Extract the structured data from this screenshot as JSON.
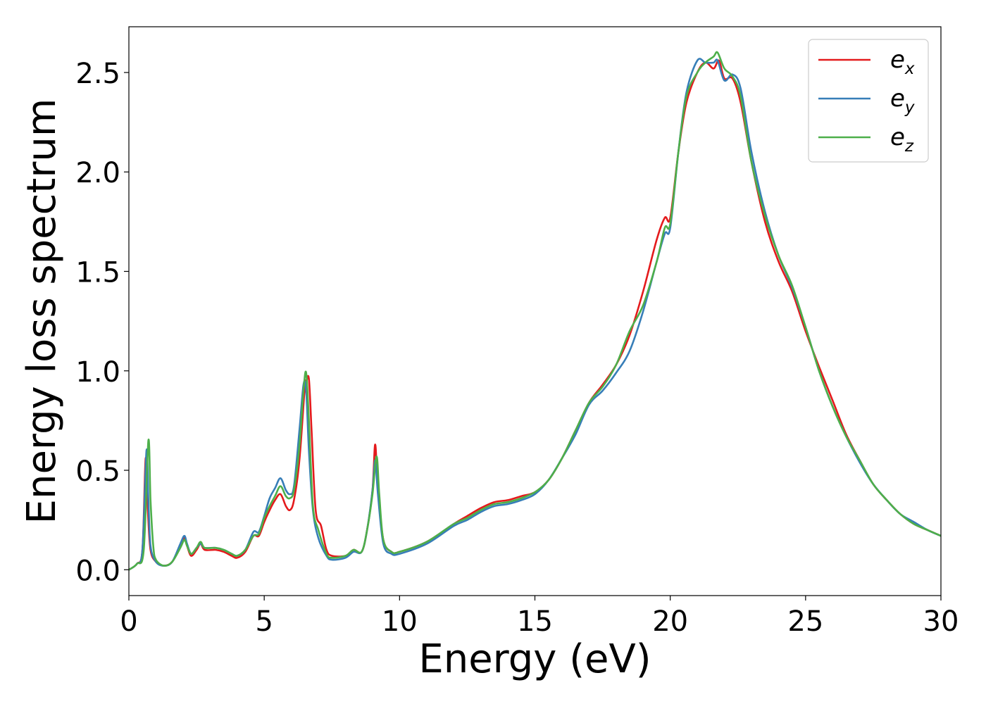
{
  "chart_data": {
    "type": "line",
    "title": "",
    "xlabel": "Energy (eV)",
    "ylabel": "Energy loss spectrum",
    "xlim": [
      0,
      30
    ],
    "ylim": [
      -0.13,
      2.73
    ],
    "xticks": [
      0,
      5,
      10,
      15,
      20,
      25,
      30
    ],
    "xtick_labels": [
      "0",
      "5",
      "10",
      "15",
      "20",
      "25",
      "30"
    ],
    "yticks": [
      0.0,
      0.5,
      1.0,
      1.5,
      2.0,
      2.5
    ],
    "ytick_labels": [
      "0.0",
      "0.5",
      "1.0",
      "1.5",
      "2.0",
      "2.5"
    ],
    "grid": false,
    "legend_position": "top-right",
    "series": [
      {
        "name": "e_x",
        "label_main": "e",
        "label_sub": "x",
        "color": "#e41a1c",
        "points": [
          [
            0,
            0.0
          ],
          [
            0.3,
            0.03
          ],
          [
            0.5,
            0.1
          ],
          [
            0.62,
            0.56
          ],
          [
            0.7,
            0.3
          ],
          [
            0.8,
            0.1
          ],
          [
            1.0,
            0.04
          ],
          [
            1.3,
            0.02
          ],
          [
            1.6,
            0.04
          ],
          [
            1.9,
            0.12
          ],
          [
            2.05,
            0.16
          ],
          [
            2.15,
            0.12
          ],
          [
            2.3,
            0.07
          ],
          [
            2.5,
            0.1
          ],
          [
            2.65,
            0.13
          ],
          [
            2.8,
            0.1
          ],
          [
            3.2,
            0.1
          ],
          [
            3.5,
            0.09
          ],
          [
            3.8,
            0.07
          ],
          [
            4.0,
            0.06
          ],
          [
            4.3,
            0.09
          ],
          [
            4.6,
            0.17
          ],
          [
            4.8,
            0.17
          ],
          [
            5.0,
            0.24
          ],
          [
            5.2,
            0.3
          ],
          [
            5.4,
            0.35
          ],
          [
            5.6,
            0.38
          ],
          [
            5.8,
            0.32
          ],
          [
            5.95,
            0.3
          ],
          [
            6.1,
            0.35
          ],
          [
            6.3,
            0.55
          ],
          [
            6.5,
            0.92
          ],
          [
            6.55,
            0.94
          ],
          [
            6.65,
            0.96
          ],
          [
            6.75,
            0.7
          ],
          [
            6.9,
            0.3
          ],
          [
            7.1,
            0.22
          ],
          [
            7.3,
            0.1
          ],
          [
            7.5,
            0.07
          ],
          [
            8.0,
            0.07
          ],
          [
            8.3,
            0.1
          ],
          [
            8.6,
            0.09
          ],
          [
            8.8,
            0.2
          ],
          [
            9.0,
            0.4
          ],
          [
            9.1,
            0.63
          ],
          [
            9.2,
            0.4
          ],
          [
            9.4,
            0.15
          ],
          [
            9.7,
            0.09
          ],
          [
            10.0,
            0.09
          ],
          [
            11.0,
            0.14
          ],
          [
            12.0,
            0.23
          ],
          [
            12.5,
            0.27
          ],
          [
            13.0,
            0.31
          ],
          [
            13.5,
            0.34
          ],
          [
            14.0,
            0.35
          ],
          [
            14.5,
            0.37
          ],
          [
            15.0,
            0.39
          ],
          [
            15.5,
            0.45
          ],
          [
            16.0,
            0.56
          ],
          [
            16.5,
            0.7
          ],
          [
            17.0,
            0.84
          ],
          [
            17.5,
            0.93
          ],
          [
            18.0,
            1.03
          ],
          [
            18.5,
            1.18
          ],
          [
            19.0,
            1.4
          ],
          [
            19.5,
            1.66
          ],
          [
            19.8,
            1.77
          ],
          [
            20.0,
            1.77
          ],
          [
            20.3,
            2.1
          ],
          [
            20.6,
            2.35
          ],
          [
            21.0,
            2.5
          ],
          [
            21.3,
            2.55
          ],
          [
            21.6,
            2.52
          ],
          [
            21.8,
            2.56
          ],
          [
            22.0,
            2.47
          ],
          [
            22.3,
            2.47
          ],
          [
            22.6,
            2.35
          ],
          [
            23.0,
            2.05
          ],
          [
            23.5,
            1.75
          ],
          [
            24.0,
            1.55
          ],
          [
            24.5,
            1.4
          ],
          [
            25.0,
            1.2
          ],
          [
            25.5,
            1.02
          ],
          [
            26.0,
            0.85
          ],
          [
            26.5,
            0.68
          ],
          [
            27.0,
            0.55
          ],
          [
            27.5,
            0.43
          ],
          [
            28.0,
            0.35
          ],
          [
            28.5,
            0.28
          ],
          [
            29.0,
            0.23
          ],
          [
            29.5,
            0.2
          ],
          [
            30.0,
            0.17
          ]
        ]
      },
      {
        "name": "e_y",
        "label_main": "e",
        "label_sub": "y",
        "color": "#377eb8",
        "points": [
          [
            0,
            0.0
          ],
          [
            0.3,
            0.03
          ],
          [
            0.5,
            0.1
          ],
          [
            0.65,
            0.6
          ],
          [
            0.72,
            0.35
          ],
          [
            0.8,
            0.12
          ],
          [
            1.0,
            0.04
          ],
          [
            1.3,
            0.02
          ],
          [
            1.6,
            0.04
          ],
          [
            1.9,
            0.13
          ],
          [
            2.05,
            0.17
          ],
          [
            2.15,
            0.13
          ],
          [
            2.3,
            0.08
          ],
          [
            2.5,
            0.11
          ],
          [
            2.65,
            0.13
          ],
          [
            2.8,
            0.11
          ],
          [
            3.2,
            0.11
          ],
          [
            3.5,
            0.1
          ],
          [
            3.8,
            0.08
          ],
          [
            4.0,
            0.07
          ],
          [
            4.3,
            0.1
          ],
          [
            4.6,
            0.19
          ],
          [
            4.8,
            0.19
          ],
          [
            5.0,
            0.27
          ],
          [
            5.2,
            0.36
          ],
          [
            5.4,
            0.41
          ],
          [
            5.6,
            0.46
          ],
          [
            5.8,
            0.4
          ],
          [
            5.95,
            0.38
          ],
          [
            6.1,
            0.42
          ],
          [
            6.3,
            0.7
          ],
          [
            6.45,
            0.93
          ],
          [
            6.55,
            0.9
          ],
          [
            6.65,
            0.6
          ],
          [
            6.8,
            0.3
          ],
          [
            7.0,
            0.16
          ],
          [
            7.3,
            0.07
          ],
          [
            7.5,
            0.05
          ],
          [
            8.0,
            0.06
          ],
          [
            8.3,
            0.09
          ],
          [
            8.6,
            0.09
          ],
          [
            8.8,
            0.2
          ],
          [
            9.0,
            0.4
          ],
          [
            9.1,
            0.55
          ],
          [
            9.2,
            0.38
          ],
          [
            9.4,
            0.13
          ],
          [
            9.7,
            0.08
          ],
          [
            10.0,
            0.08
          ],
          [
            11.0,
            0.13
          ],
          [
            12.0,
            0.22
          ],
          [
            12.5,
            0.25
          ],
          [
            13.0,
            0.29
          ],
          [
            13.5,
            0.32
          ],
          [
            14.0,
            0.33
          ],
          [
            14.5,
            0.35
          ],
          [
            15.0,
            0.38
          ],
          [
            15.5,
            0.45
          ],
          [
            16.0,
            0.56
          ],
          [
            16.5,
            0.68
          ],
          [
            17.0,
            0.83
          ],
          [
            17.5,
            0.9
          ],
          [
            18.0,
            0.99
          ],
          [
            18.5,
            1.1
          ],
          [
            19.0,
            1.3
          ],
          [
            19.5,
            1.55
          ],
          [
            19.8,
            1.69
          ],
          [
            20.0,
            1.72
          ],
          [
            20.3,
            2.1
          ],
          [
            20.6,
            2.4
          ],
          [
            21.0,
            2.56
          ],
          [
            21.3,
            2.55
          ],
          [
            21.6,
            2.55
          ],
          [
            21.75,
            2.56
          ],
          [
            22.0,
            2.46
          ],
          [
            22.3,
            2.49
          ],
          [
            22.6,
            2.42
          ],
          [
            23.0,
            2.1
          ],
          [
            23.5,
            1.8
          ],
          [
            24.0,
            1.58
          ],
          [
            24.5,
            1.42
          ],
          [
            25.0,
            1.22
          ],
          [
            25.5,
            1.0
          ],
          [
            26.0,
            0.82
          ],
          [
            26.5,
            0.67
          ],
          [
            27.0,
            0.54
          ],
          [
            27.5,
            0.43
          ],
          [
            28.0,
            0.35
          ],
          [
            28.5,
            0.28
          ],
          [
            29.0,
            0.24
          ],
          [
            29.5,
            0.2
          ],
          [
            30.0,
            0.17
          ]
        ]
      },
      {
        "name": "e_z",
        "label_main": "e",
        "label_sub": "z",
        "color": "#4daf4a",
        "points": [
          [
            0,
            0.0
          ],
          [
            0.3,
            0.03
          ],
          [
            0.55,
            0.1
          ],
          [
            0.72,
            0.65
          ],
          [
            0.8,
            0.35
          ],
          [
            0.9,
            0.12
          ],
          [
            1.0,
            0.05
          ],
          [
            1.3,
            0.02
          ],
          [
            1.6,
            0.04
          ],
          [
            1.9,
            0.11
          ],
          [
            2.05,
            0.15
          ],
          [
            2.15,
            0.12
          ],
          [
            2.3,
            0.08
          ],
          [
            2.5,
            0.11
          ],
          [
            2.65,
            0.14
          ],
          [
            2.8,
            0.11
          ],
          [
            3.2,
            0.11
          ],
          [
            3.5,
            0.1
          ],
          [
            3.8,
            0.08
          ],
          [
            4.0,
            0.07
          ],
          [
            4.3,
            0.1
          ],
          [
            4.6,
            0.17
          ],
          [
            4.8,
            0.18
          ],
          [
            5.0,
            0.26
          ],
          [
            5.2,
            0.32
          ],
          [
            5.4,
            0.37
          ],
          [
            5.6,
            0.42
          ],
          [
            5.8,
            0.37
          ],
          [
            5.95,
            0.36
          ],
          [
            6.1,
            0.4
          ],
          [
            6.3,
            0.62
          ],
          [
            6.45,
            0.9
          ],
          [
            6.55,
            0.99
          ],
          [
            6.65,
            0.75
          ],
          [
            6.8,
            0.32
          ],
          [
            7.0,
            0.2
          ],
          [
            7.3,
            0.08
          ],
          [
            7.5,
            0.06
          ],
          [
            8.0,
            0.07
          ],
          [
            8.3,
            0.1
          ],
          [
            8.6,
            0.09
          ],
          [
            8.8,
            0.2
          ],
          [
            9.0,
            0.38
          ],
          [
            9.15,
            0.57
          ],
          [
            9.25,
            0.38
          ],
          [
            9.4,
            0.15
          ],
          [
            9.7,
            0.09
          ],
          [
            10.0,
            0.09
          ],
          [
            11.0,
            0.14
          ],
          [
            12.0,
            0.23
          ],
          [
            12.5,
            0.26
          ],
          [
            13.0,
            0.3
          ],
          [
            13.5,
            0.33
          ],
          [
            14.0,
            0.34
          ],
          [
            14.5,
            0.36
          ],
          [
            15.0,
            0.39
          ],
          [
            15.5,
            0.45
          ],
          [
            16.0,
            0.56
          ],
          [
            16.5,
            0.7
          ],
          [
            17.0,
            0.84
          ],
          [
            17.5,
            0.92
          ],
          [
            18.0,
            1.03
          ],
          [
            18.5,
            1.2
          ],
          [
            19.0,
            1.33
          ],
          [
            19.5,
            1.55
          ],
          [
            19.8,
            1.72
          ],
          [
            20.0,
            1.74
          ],
          [
            20.3,
            2.1
          ],
          [
            20.6,
            2.38
          ],
          [
            21.0,
            2.5
          ],
          [
            21.3,
            2.55
          ],
          [
            21.6,
            2.58
          ],
          [
            21.75,
            2.6
          ],
          [
            22.0,
            2.52
          ],
          [
            22.3,
            2.48
          ],
          [
            22.6,
            2.38
          ],
          [
            23.0,
            2.05
          ],
          [
            23.5,
            1.78
          ],
          [
            24.0,
            1.58
          ],
          [
            24.5,
            1.43
          ],
          [
            25.0,
            1.22
          ],
          [
            25.5,
            1.0
          ],
          [
            26.0,
            0.82
          ],
          [
            26.5,
            0.67
          ],
          [
            27.0,
            0.55
          ],
          [
            27.5,
            0.43
          ],
          [
            28.0,
            0.35
          ],
          [
            28.5,
            0.28
          ],
          [
            29.0,
            0.23
          ],
          [
            29.5,
            0.2
          ],
          [
            30.0,
            0.17
          ]
        ]
      }
    ]
  }
}
